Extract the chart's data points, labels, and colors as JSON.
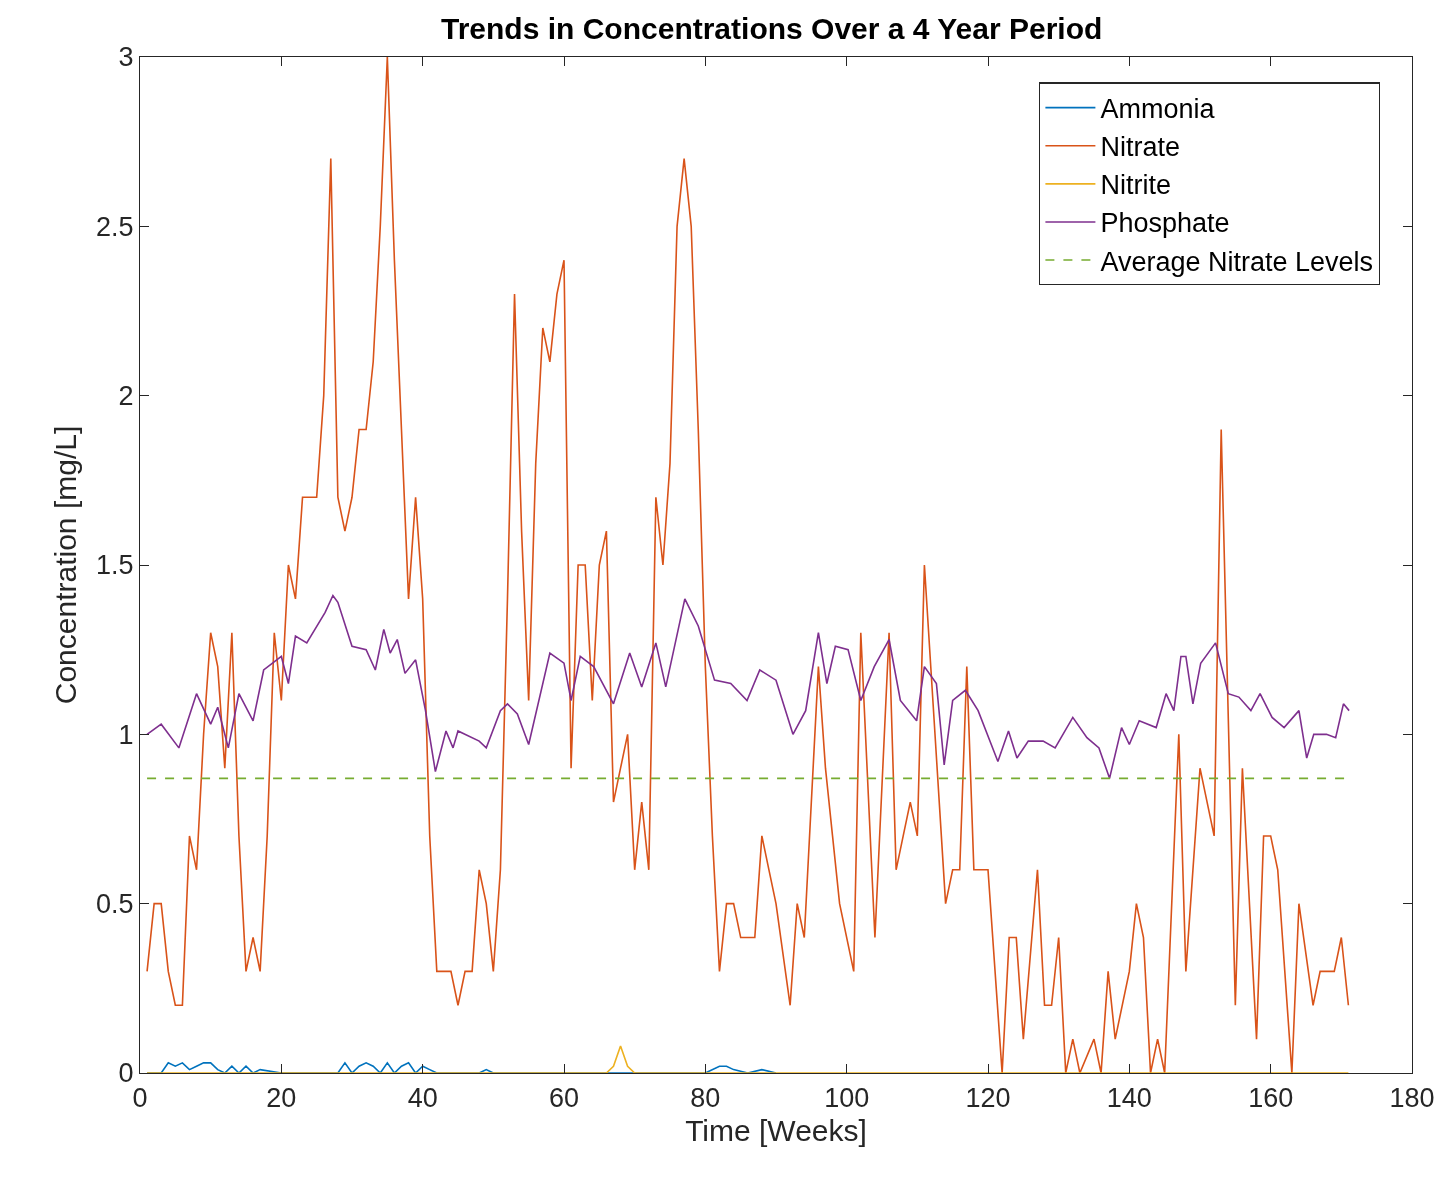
{
  "chart_data": {
    "type": "line",
    "title": "Trends in Concentrations Over a 4 Year Period",
    "xlabel": "Time [Weeks]",
    "ylabel": "Concentration [mg/L]",
    "xlim": [
      0,
      180
    ],
    "xticks": [
      0,
      20,
      40,
      60,
      80,
      100,
      120,
      140,
      160,
      180
    ],
    "ylim": [
      0,
      3
    ],
    "yticks": [
      0,
      0.5,
      1,
      1.5,
      2,
      2.5,
      3
    ],
    "legend": "top right",
    "marker": "none",
    "series": [
      {
        "name": "Ammonia",
        "color": "#0072bd",
        "x": [
          1,
          3,
          4,
          5,
          6,
          7,
          8,
          9,
          10,
          11,
          12,
          13,
          14,
          15,
          16,
          17,
          20,
          28,
          29,
          30,
          31,
          32,
          33,
          34,
          35,
          36,
          37,
          38,
          39,
          40,
          41,
          42,
          45,
          48,
          49,
          50,
          60,
          80,
          82,
          83,
          84,
          86,
          88,
          90
        ],
        "values": [
          0,
          0,
          0.03,
          0.02,
          0.03,
          0.01,
          0.02,
          0.03,
          0.03,
          0.01,
          0,
          0.02,
          0,
          0.02,
          0,
          0.01,
          0,
          0,
          0.03,
          0,
          0.02,
          0.03,
          0.02,
          0,
          0.03,
          0,
          0.02,
          0.03,
          0,
          0.02,
          0.01,
          0,
          0,
          0,
          0.01,
          0,
          0,
          0,
          0.02,
          0.02,
          0.01,
          0,
          0.01,
          0
        ]
      },
      {
        "name": "Nitrate",
        "color": "#d95319",
        "x": [
          1,
          2,
          3,
          4,
          5,
          6,
          7,
          8,
          9,
          10,
          11,
          12,
          13,
          14,
          15,
          16,
          17,
          18,
          19,
          20,
          21,
          22,
          23,
          24,
          25,
          26,
          27,
          28,
          29,
          30,
          31,
          32,
          33,
          34,
          35,
          36,
          37,
          38,
          39,
          40,
          41,
          42,
          43,
          44,
          45,
          46,
          47,
          48,
          49,
          50,
          51,
          52,
          53,
          54,
          55,
          56,
          57,
          58,
          59,
          60,
          61,
          62,
          63,
          64,
          65,
          66,
          67,
          68,
          69,
          70,
          71,
          72,
          73,
          74,
          75,
          76,
          77,
          78,
          79,
          80,
          81,
          82,
          83,
          84,
          85,
          86,
          87,
          88,
          89,
          90,
          92,
          93,
          94,
          96,
          97,
          98,
          99,
          101,
          102,
          104,
          106,
          107,
          108,
          109,
          110,
          111,
          114,
          115,
          116,
          117,
          118,
          119,
          120,
          122,
          123,
          124,
          125,
          127,
          128,
          129,
          130,
          131,
          132,
          133,
          135,
          136,
          137,
          138,
          140,
          141,
          142,
          143,
          144,
          145,
          147,
          148,
          150,
          152,
          153,
          155,
          156,
          158,
          159,
          160,
          161,
          163,
          164,
          166,
          167,
          169,
          170,
          171
        ],
        "values": [
          0.3,
          0.5,
          0.5,
          0.3,
          0.2,
          0.2,
          0.7,
          0.6,
          1.0,
          1.3,
          1.2,
          0.9,
          1.3,
          0.7,
          0.3,
          0.4,
          0.3,
          0.7,
          1.3,
          1.1,
          1.5,
          1.4,
          1.7,
          1.7,
          1.7,
          2.0,
          2.7,
          1.7,
          1.6,
          1.7,
          1.9,
          1.9,
          2.1,
          2.5,
          3.0,
          2.4,
          1.9,
          1.4,
          1.7,
          1.4,
          0.7,
          0.3,
          0.3,
          0.3,
          0.2,
          0.3,
          0.3,
          0.6,
          0.5,
          0.3,
          0.6,
          1.4,
          2.3,
          1.6,
          1.1,
          1.8,
          2.2,
          2.1,
          2.3,
          2.4,
          0.9,
          1.5,
          1.5,
          1.1,
          1.5,
          1.6,
          0.8,
          0.9,
          1.0,
          0.6,
          0.8,
          0.6,
          1.7,
          1.5,
          1.8,
          2.5,
          2.7,
          2.5,
          1.9,
          1.2,
          0.7,
          0.3,
          0.5,
          0.5,
          0.4,
          0.4,
          0.4,
          0.7,
          0.6,
          0.5,
          0.2,
          0.5,
          0.4,
          1.2,
          0.9,
          0.7,
          0.5,
          0.3,
          1.3,
          0.4,
          1.3,
          0.6,
          0.7,
          0.8,
          0.7,
          1.5,
          0.5,
          0.6,
          0.6,
          1.2,
          0.6,
          0.6,
          0.6,
          0.0,
          0.4,
          0.4,
          0.1,
          0.6,
          0.2,
          0.2,
          0.4,
          0.0,
          0.1,
          0.0,
          0.1,
          0.0,
          0.3,
          0.1,
          0.3,
          0.5,
          0.4,
          0.0,
          0.1,
          0.0,
          1.0,
          0.3,
          0.9,
          0.7,
          1.9,
          0.2,
          0.9,
          0.1,
          0.7,
          0.7,
          0.6,
          0.0,
          0.5,
          0.2,
          0.3,
          0.3,
          0.4,
          0.2
        ]
      },
      {
        "name": "Nitrite",
        "color": "#edb120",
        "x": [
          1,
          66,
          67,
          68,
          69,
          70,
          171
        ],
        "values": [
          0,
          0,
          0.02,
          0.08,
          0.02,
          0,
          0
        ]
      },
      {
        "name": "Phosphate",
        "color": "#7e2f8e",
        "x": [
          1,
          3,
          5.5,
          8,
          10,
          11,
          12.5,
          14,
          16,
          17.5,
          20,
          21,
          22,
          23.6,
          26.2,
          27.3,
          28,
          30,
          32,
          33.3,
          34.5,
          35.4,
          36.4,
          37.5,
          39,
          40.4,
          41.8,
          43.3,
          44.3,
          45,
          48,
          49,
          51,
          52,
          53.4,
          55,
          58,
          60,
          61,
          62.3,
          64.2,
          67,
          69.3,
          71,
          73,
          74.4,
          77.1,
          79,
          81.3,
          83.6,
          85.9,
          87.7,
          90,
          92.4,
          94.2,
          96,
          97.2,
          98.4,
          100.2,
          102,
          103.9,
          106,
          107.6,
          109.9,
          111,
          112.7,
          113.8,
          115,
          116.8,
          118.6,
          121.4,
          122.9,
          124.1,
          125.7,
          127.8,
          129.5,
          132,
          134,
          135.7,
          137.2,
          138.9,
          140,
          141.4,
          143.8,
          145.2,
          146.3,
          147.3,
          148,
          149,
          150.1,
          152.2,
          154,
          155.5,
          157.2,
          158.5,
          160.2,
          161.9,
          164,
          165.1,
          166.1,
          167.9,
          169.2,
          170.3,
          171.1
        ],
        "values": [
          1.0,
          1.03,
          0.96,
          1.12,
          1.03,
          1.08,
          0.96,
          1.12,
          1.04,
          1.19,
          1.23,
          1.15,
          1.29,
          1.27,
          1.36,
          1.41,
          1.39,
          1.26,
          1.25,
          1.19,
          1.31,
          1.24,
          1.28,
          1.18,
          1.22,
          1.07,
          0.89,
          1.01,
          0.96,
          1.01,
          0.98,
          0.96,
          1.07,
          1.09,
          1.06,
          0.97,
          1.24,
          1.21,
          1.1,
          1.23,
          1.2,
          1.09,
          1.24,
          1.14,
          1.27,
          1.14,
          1.4,
          1.32,
          1.16,
          1.15,
          1.1,
          1.19,
          1.16,
          1.0,
          1.07,
          1.3,
          1.15,
          1.26,
          1.25,
          1.1,
          1.2,
          1.28,
          1.1,
          1.04,
          1.2,
          1.15,
          0.91,
          1.1,
          1.13,
          1.07,
          0.92,
          1.01,
          0.93,
          0.98,
          0.98,
          0.96,
          1.05,
          0.99,
          0.96,
          0.87,
          1.02,
          0.97,
          1.04,
          1.02,
          1.12,
          1.07,
          1.23,
          1.23,
          1.09,
          1.21,
          1.27,
          1.12,
          1.11,
          1.07,
          1.12,
          1.05,
          1.02,
          1.07,
          0.93,
          1.0,
          1.0,
          0.99,
          1.09,
          1.07
        ]
      },
      {
        "name": "Average Nitrate Levels",
        "color": "#77ac30",
        "line_style": "dashed",
        "x": [
          1,
          171
        ],
        "values": [
          0.87,
          0.87
        ]
      }
    ]
  }
}
